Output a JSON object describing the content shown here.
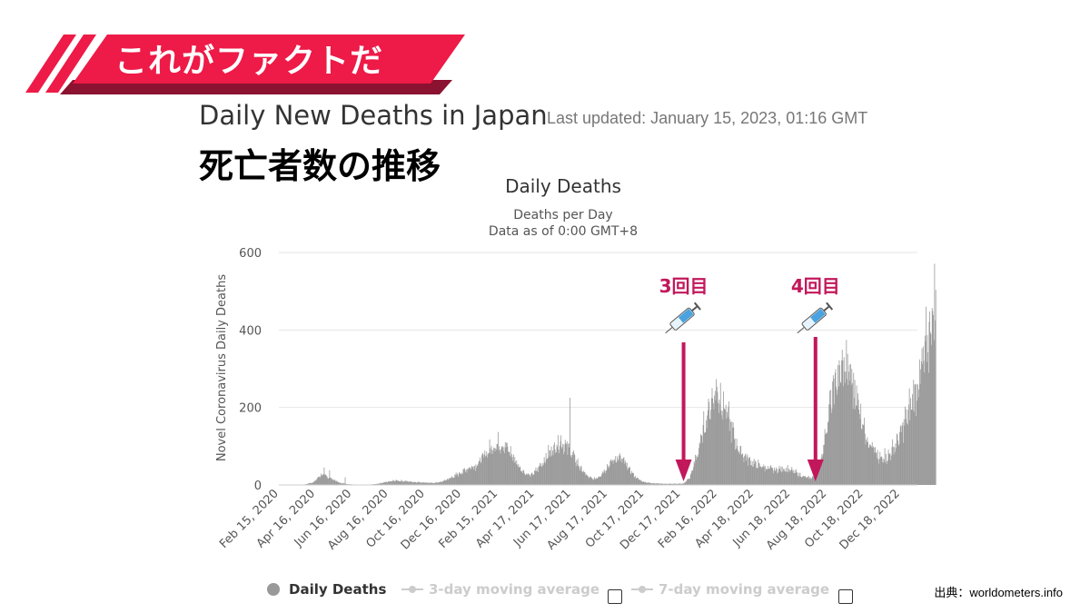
{
  "banner": {
    "text": "これがファクトだ"
  },
  "header": {
    "title": "Daily New Deaths in Japan",
    "updated": "Last updated: January 15, 2023, 01:16 GMT",
    "subtitle_jp": "死亡者数の推移"
  },
  "annotations": [
    {
      "label": "3回目",
      "date_index": 675,
      "icon": "syringe-icon",
      "color": "#c2185b"
    },
    {
      "label": "4回目",
      "date_index": 895,
      "icon": "syringe-icon",
      "color": "#c2185b"
    }
  ],
  "chart_data": {
    "type": "bar",
    "title": "Daily Deaths",
    "subtitle_line1": "Deaths per Day",
    "subtitle_line2": "Data as of 0:00 GMT+8",
    "ylabel": "Novel Coronavirus Daily Deaths",
    "ylim": [
      0,
      600
    ],
    "yticks": [
      0,
      200,
      400,
      600
    ],
    "x_start": "Feb 15, 2020",
    "x_end": "Jan 14, 2023",
    "xtick_labels": [
      "Feb 15, 2020",
      "Apr 16, 2020",
      "Jun 16, 2020",
      "Aug 16, 2020",
      "Oct 16, 2020",
      "Dec 16, 2020",
      "Feb 15, 2021",
      "Apr 17, 2021",
      "Jun 17, 2021",
      "Aug 17, 2021",
      "Oct 17, 2021",
      "Dec 17, 2021",
      "Feb 16, 2022",
      "Apr 18, 2022",
      "Jun 18, 2022",
      "Aug 18, 2022",
      "Oct 18, 2022",
      "Dec 18, 2022"
    ],
    "series": [
      {
        "name": "Daily Deaths",
        "color": "#999999",
        "control_points": [
          [
            0,
            0
          ],
          [
            40,
            0
          ],
          [
            58,
            8
          ],
          [
            70,
            28
          ],
          [
            80,
            22
          ],
          [
            90,
            15
          ],
          [
            100,
            6
          ],
          [
            115,
            2
          ],
          [
            130,
            1
          ],
          [
            150,
            1
          ],
          [
            165,
            3
          ],
          [
            180,
            8
          ],
          [
            195,
            12
          ],
          [
            210,
            10
          ],
          [
            225,
            8
          ],
          [
            240,
            7
          ],
          [
            255,
            5
          ],
          [
            270,
            8
          ],
          [
            285,
            18
          ],
          [
            300,
            30
          ],
          [
            315,
            45
          ],
          [
            330,
            55
          ],
          [
            345,
            85
          ],
          [
            360,
            108
          ],
          [
            370,
            112
          ],
          [
            380,
            100
          ],
          [
            390,
            75
          ],
          [
            400,
            50
          ],
          [
            410,
            32
          ],
          [
            420,
            25
          ],
          [
            430,
            40
          ],
          [
            440,
            62
          ],
          [
            450,
            85
          ],
          [
            460,
            103
          ],
          [
            467,
            118
          ],
          [
            475,
            110
          ],
          [
            485,
            92
          ],
          [
            495,
            65
          ],
          [
            505,
            40
          ],
          [
            515,
            22
          ],
          [
            525,
            15
          ],
          [
            535,
            25
          ],
          [
            545,
            45
          ],
          [
            555,
            63
          ],
          [
            565,
            75
          ],
          [
            575,
            62
          ],
          [
            585,
            40
          ],
          [
            595,
            20
          ],
          [
            605,
            10
          ],
          [
            615,
            6
          ],
          [
            630,
            4
          ],
          [
            645,
            3
          ],
          [
            660,
            3
          ],
          [
            675,
            4
          ],
          [
            685,
            20
          ],
          [
            695,
            70
          ],
          [
            705,
            130
          ],
          [
            712,
            180
          ],
          [
            720,
            220
          ],
          [
            727,
            255
          ],
          [
            735,
            240
          ],
          [
            745,
            200
          ],
          [
            755,
            150
          ],
          [
            765,
            100
          ],
          [
            775,
            80
          ],
          [
            785,
            65
          ],
          [
            795,
            55
          ],
          [
            805,
            50
          ],
          [
            815,
            45
          ],
          [
            825,
            40
          ],
          [
            835,
            42
          ],
          [
            845,
            44
          ],
          [
            855,
            38
          ],
          [
            865,
            30
          ],
          [
            875,
            22
          ],
          [
            885,
            18
          ],
          [
            895,
            25
          ],
          [
            905,
            80
          ],
          [
            915,
            180
          ],
          [
            925,
            260
          ],
          [
            935,
            300
          ],
          [
            945,
            320
          ],
          [
            955,
            280
          ],
          [
            965,
            230
          ],
          [
            975,
            160
          ],
          [
            985,
            110
          ],
          [
            995,
            85
          ],
          [
            1005,
            70
          ],
          [
            1015,
            75
          ],
          [
            1025,
            100
          ],
          [
            1035,
            130
          ],
          [
            1045,
            175
          ],
          [
            1055,
            220
          ],
          [
            1065,
            270
          ],
          [
            1075,
            330
          ],
          [
            1085,
            420
          ],
          [
            1090,
            470
          ],
          [
            1095,
            480
          ]
        ],
        "spikes": [
          [
            75,
            45
          ],
          [
            84,
            38
          ],
          [
            110,
            20
          ],
          [
            485,
            225
          ],
          [
            1000,
            55
          ],
          [
            1010,
            95
          ]
        ]
      }
    ],
    "legend": [
      {
        "label": "Daily Deaths",
        "active": true
      },
      {
        "label": "3-day moving average",
        "active": false
      },
      {
        "label": "7-day moving average",
        "active": false
      }
    ]
  },
  "source": "出典：worldometers.info",
  "colors": {
    "banner_red": "#ee1a47",
    "banner_dark": "#8b1230",
    "arrow": "#c2185b",
    "bar": "#999999"
  }
}
